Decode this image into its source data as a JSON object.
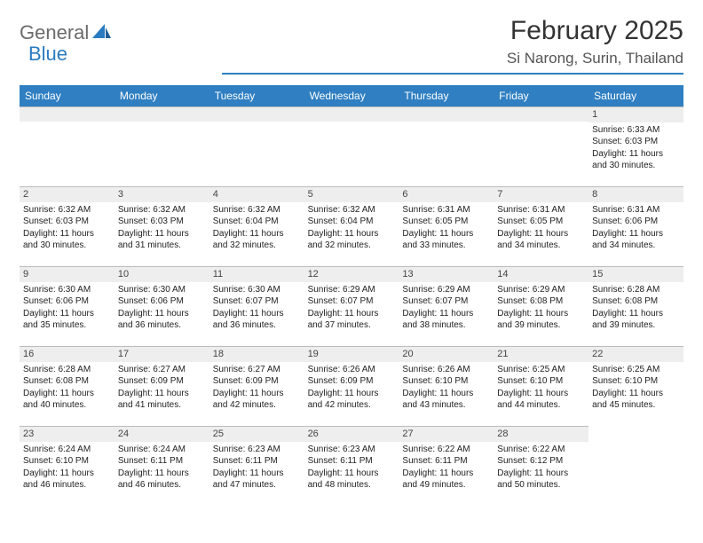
{
  "logo": {
    "text1": "General",
    "text2": "Blue"
  },
  "title": "February 2025",
  "location": "Si Narong, Surin, Thailand",
  "colors": {
    "brand": "#2f7fc2",
    "gray": "#6b6b6b",
    "cellHeader": "#eeeeee",
    "border": "#bbbbbb"
  },
  "dayNames": [
    "Sunday",
    "Monday",
    "Tuesday",
    "Wednesday",
    "Thursday",
    "Friday",
    "Saturday"
  ],
  "leadingBlanks": 6,
  "days": [
    {
      "n": 1,
      "sunrise": "6:33 AM",
      "sunset": "6:03 PM",
      "daylight": "11 hours and 30 minutes."
    },
    {
      "n": 2,
      "sunrise": "6:32 AM",
      "sunset": "6:03 PM",
      "daylight": "11 hours and 30 minutes."
    },
    {
      "n": 3,
      "sunrise": "6:32 AM",
      "sunset": "6:03 PM",
      "daylight": "11 hours and 31 minutes."
    },
    {
      "n": 4,
      "sunrise": "6:32 AM",
      "sunset": "6:04 PM",
      "daylight": "11 hours and 32 minutes."
    },
    {
      "n": 5,
      "sunrise": "6:32 AM",
      "sunset": "6:04 PM",
      "daylight": "11 hours and 32 minutes."
    },
    {
      "n": 6,
      "sunrise": "6:31 AM",
      "sunset": "6:05 PM",
      "daylight": "11 hours and 33 minutes."
    },
    {
      "n": 7,
      "sunrise": "6:31 AM",
      "sunset": "6:05 PM",
      "daylight": "11 hours and 34 minutes."
    },
    {
      "n": 8,
      "sunrise": "6:31 AM",
      "sunset": "6:06 PM",
      "daylight": "11 hours and 34 minutes."
    },
    {
      "n": 9,
      "sunrise": "6:30 AM",
      "sunset": "6:06 PM",
      "daylight": "11 hours and 35 minutes."
    },
    {
      "n": 10,
      "sunrise": "6:30 AM",
      "sunset": "6:06 PM",
      "daylight": "11 hours and 36 minutes."
    },
    {
      "n": 11,
      "sunrise": "6:30 AM",
      "sunset": "6:07 PM",
      "daylight": "11 hours and 36 minutes."
    },
    {
      "n": 12,
      "sunrise": "6:29 AM",
      "sunset": "6:07 PM",
      "daylight": "11 hours and 37 minutes."
    },
    {
      "n": 13,
      "sunrise": "6:29 AM",
      "sunset": "6:07 PM",
      "daylight": "11 hours and 38 minutes."
    },
    {
      "n": 14,
      "sunrise": "6:29 AM",
      "sunset": "6:08 PM",
      "daylight": "11 hours and 39 minutes."
    },
    {
      "n": 15,
      "sunrise": "6:28 AM",
      "sunset": "6:08 PM",
      "daylight": "11 hours and 39 minutes."
    },
    {
      "n": 16,
      "sunrise": "6:28 AM",
      "sunset": "6:08 PM",
      "daylight": "11 hours and 40 minutes."
    },
    {
      "n": 17,
      "sunrise": "6:27 AM",
      "sunset": "6:09 PM",
      "daylight": "11 hours and 41 minutes."
    },
    {
      "n": 18,
      "sunrise": "6:27 AM",
      "sunset": "6:09 PM",
      "daylight": "11 hours and 42 minutes."
    },
    {
      "n": 19,
      "sunrise": "6:26 AM",
      "sunset": "6:09 PM",
      "daylight": "11 hours and 42 minutes."
    },
    {
      "n": 20,
      "sunrise": "6:26 AM",
      "sunset": "6:10 PM",
      "daylight": "11 hours and 43 minutes."
    },
    {
      "n": 21,
      "sunrise": "6:25 AM",
      "sunset": "6:10 PM",
      "daylight": "11 hours and 44 minutes."
    },
    {
      "n": 22,
      "sunrise": "6:25 AM",
      "sunset": "6:10 PM",
      "daylight": "11 hours and 45 minutes."
    },
    {
      "n": 23,
      "sunrise": "6:24 AM",
      "sunset": "6:10 PM",
      "daylight": "11 hours and 46 minutes."
    },
    {
      "n": 24,
      "sunrise": "6:24 AM",
      "sunset": "6:11 PM",
      "daylight": "11 hours and 46 minutes."
    },
    {
      "n": 25,
      "sunrise": "6:23 AM",
      "sunset": "6:11 PM",
      "daylight": "11 hours and 47 minutes."
    },
    {
      "n": 26,
      "sunrise": "6:23 AM",
      "sunset": "6:11 PM",
      "daylight": "11 hours and 48 minutes."
    },
    {
      "n": 27,
      "sunrise": "6:22 AM",
      "sunset": "6:11 PM",
      "daylight": "11 hours and 49 minutes."
    },
    {
      "n": 28,
      "sunrise": "6:22 AM",
      "sunset": "6:12 PM",
      "daylight": "11 hours and 50 minutes."
    }
  ],
  "labels": {
    "sunrise": "Sunrise:",
    "sunset": "Sunset:",
    "daylight": "Daylight:"
  }
}
